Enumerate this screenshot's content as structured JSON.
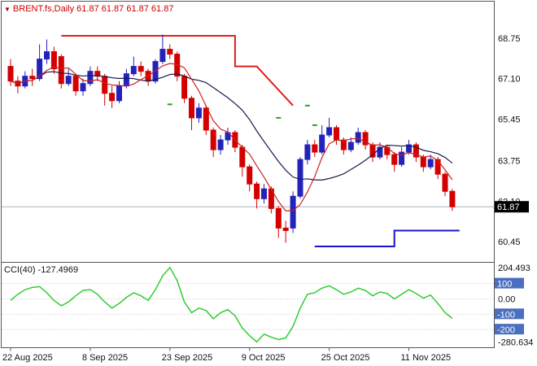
{
  "window": {
    "title_symbol": "BRENT.fs,Daily",
    "ohlc": "61.87 61.87 61.87 61.87",
    "collapse_icon": "▼"
  },
  "colors": {
    "bull": "#2323bb",
    "bear": "#d40000",
    "ma_slow": "#1a1a4e",
    "ma_fast": "#cc2222",
    "band_upper": "#e02020",
    "band_lower": "#1414cc",
    "cci_line": "#32cd32",
    "level_badge": "#4a6fbf",
    "price_badge_bg": "#000000",
    "price_badge_text": "#ffffff",
    "title_text": "#cc0000",
    "current_price_line": "#a8b4c0",
    "border": "#555555",
    "grid_dotted": "#c8c8c8",
    "axis_text": "#111111",
    "green_mark": "#22aa22"
  },
  "chart_data": {
    "type": "candlestick",
    "symbol": "BRENT.fs",
    "timeframe": "Daily",
    "price_axis": {
      "labels": [
        "68.75",
        "67.10",
        "65.45",
        "63.75",
        "62.10",
        "60.45"
      ],
      "values": [
        68.75,
        67.1,
        65.45,
        63.75,
        62.1,
        60.45
      ],
      "current": {
        "label": "61.87",
        "value": 61.87
      }
    },
    "date_axis": {
      "labels": [
        "22 Aug 2025",
        "8 Sep 2025",
        "23 Sep 2025",
        "9 Oct 2025",
        "25 Oct 2025",
        "11 Nov 2025"
      ],
      "indices": [
        0,
        11,
        22,
        33,
        44,
        55
      ]
    },
    "candles": [
      [
        67.6,
        67.9,
        66.8,
        67.0
      ],
      [
        67.0,
        67.2,
        66.5,
        66.8
      ],
      [
        66.8,
        67.4,
        66.7,
        67.2
      ],
      [
        67.2,
        67.5,
        66.8,
        67.1
      ],
      [
        67.1,
        68.5,
        67.0,
        67.9
      ],
      [
        67.9,
        68.7,
        67.7,
        68.2
      ],
      [
        68.2,
        68.4,
        67.3,
        67.5
      ],
      [
        68.0,
        68.1,
        66.7,
        66.9
      ],
      [
        66.9,
        67.5,
        66.8,
        67.2
      ],
      [
        67.2,
        67.3,
        66.4,
        66.6
      ],
      [
        66.6,
        67.1,
        66.4,
        66.9
      ],
      [
        66.9,
        67.6,
        66.8,
        67.4
      ],
      [
        67.4,
        67.6,
        67.0,
        67.2
      ],
      [
        67.2,
        67.3,
        66.0,
        66.5
      ],
      [
        66.5,
        66.8,
        65.9,
        66.2
      ],
      [
        66.2,
        67.0,
        66.1,
        66.8
      ],
      [
        66.8,
        67.5,
        66.7,
        67.3
      ],
      [
        67.3,
        68.0,
        67.2,
        67.6
      ],
      [
        67.6,
        67.8,
        67.2,
        67.4
      ],
      [
        67.4,
        67.5,
        66.8,
        67.0
      ],
      [
        67.0,
        67.9,
        66.9,
        67.8
      ],
      [
        67.8,
        68.9,
        67.7,
        68.3
      ],
      [
        68.3,
        68.5,
        67.9,
        68.1
      ],
      [
        68.1,
        68.2,
        67.0,
        67.2
      ],
      [
        67.2,
        67.3,
        66.1,
        66.3
      ],
      [
        66.3,
        66.4,
        65.0,
        65.5
      ],
      [
        65.5,
        66.1,
        65.3,
        65.9
      ],
      [
        65.9,
        66.0,
        64.8,
        65.0
      ],
      [
        65.0,
        65.1,
        63.9,
        64.2
      ],
      [
        64.2,
        64.8,
        64.0,
        64.6
      ],
      [
        64.6,
        65.1,
        64.4,
        64.9
      ],
      [
        64.9,
        65.0,
        64.1,
        64.3
      ],
      [
        64.3,
        64.4,
        63.1,
        63.5
      ],
      [
        63.5,
        63.6,
        62.5,
        62.8
      ],
      [
        62.8,
        62.9,
        61.8,
        62.2
      ],
      [
        62.2,
        62.8,
        62.0,
        62.6
      ],
      [
        62.6,
        62.7,
        61.6,
        61.8
      ],
      [
        61.8,
        61.9,
        60.6,
        61.0
      ],
      [
        61.0,
        61.3,
        60.4,
        60.9
      ],
      [
        61.0,
        62.5,
        60.8,
        62.3
      ],
      [
        62.3,
        63.9,
        62.2,
        63.8
      ],
      [
        63.8,
        64.6,
        63.6,
        64.4
      ],
      [
        64.4,
        64.6,
        63.9,
        64.1
      ],
      [
        64.1,
        65.2,
        64.0,
        64.8
      ],
      [
        64.8,
        65.5,
        64.7,
        65.1
      ],
      [
        65.1,
        65.2,
        64.4,
        64.6
      ],
      [
        64.6,
        64.7,
        64.0,
        64.2
      ],
      [
        64.2,
        64.7,
        64.1,
        64.5
      ],
      [
        64.5,
        65.1,
        64.4,
        64.9
      ],
      [
        64.9,
        65.0,
        64.2,
        64.4
      ],
      [
        64.4,
        64.5,
        63.7,
        63.9
      ],
      [
        63.9,
        64.5,
        63.8,
        64.3
      ],
      [
        64.3,
        64.4,
        63.8,
        64.0
      ],
      [
        64.0,
        64.1,
        63.3,
        63.6
      ],
      [
        63.6,
        64.3,
        63.5,
        64.1
      ],
      [
        64.1,
        64.6,
        64.0,
        64.4
      ],
      [
        64.4,
        64.5,
        63.7,
        63.9
      ],
      [
        63.9,
        64.0,
        63.3,
        63.5
      ],
      [
        63.5,
        64.0,
        63.4,
        63.8
      ],
      [
        63.8,
        63.9,
        63.0,
        63.2
      ],
      [
        63.2,
        63.3,
        62.3,
        62.5
      ],
      [
        62.5,
        62.6,
        61.7,
        61.87
      ]
    ],
    "ma_fast_period": 5,
    "ma_slow_period": 13,
    "upper_band": [
      [
        7,
        68.85
      ],
      [
        31,
        68.85
      ],
      [
        31,
        67.6
      ],
      [
        34,
        67.6
      ],
      [
        39,
        66.0
      ]
    ],
    "lower_band": [
      [
        42,
        60.25
      ],
      [
        53,
        60.25
      ],
      [
        53,
        60.9
      ],
      [
        62,
        60.9
      ]
    ],
    "green_marks": [
      [
        22,
        66.05
      ],
      [
        37,
        65.5
      ],
      [
        41,
        66.0
      ],
      [
        42,
        65.2
      ]
    ],
    "indicator": {
      "name_label": "CCI(40) -127.4969",
      "current_value": -127.4969,
      "values": [
        -10,
        30,
        60,
        75,
        80,
        40,
        -10,
        -45,
        -20,
        20,
        55,
        60,
        30,
        -20,
        -60,
        -30,
        10,
        40,
        20,
        -10,
        60,
        150,
        204.493,
        120,
        -20,
        -90,
        -60,
        -75,
        -130,
        -90,
        -70,
        -110,
        -190,
        -240,
        -280.634,
        -230,
        -250,
        -265,
        -255,
        -180,
        -60,
        30,
        40,
        70,
        85,
        60,
        30,
        45,
        70,
        55,
        20,
        45,
        35,
        0,
        30,
        60,
        35,
        5,
        25,
        -30,
        -90,
        -127.4969
      ],
      "axis": {
        "max_label": "204.493",
        "max_value": 204.493,
        "zero_label": "0.00",
        "zero_value": 0,
        "min_label": "-280.634",
        "min_value": -280.634,
        "level_badges": [
          {
            "value": 100,
            "label": "100"
          },
          {
            "value": -100,
            "label": "-100"
          },
          {
            "value": -200,
            "label": "-200"
          }
        ],
        "dotted_levels": [
          100,
          0,
          -100,
          -200
        ]
      }
    }
  }
}
